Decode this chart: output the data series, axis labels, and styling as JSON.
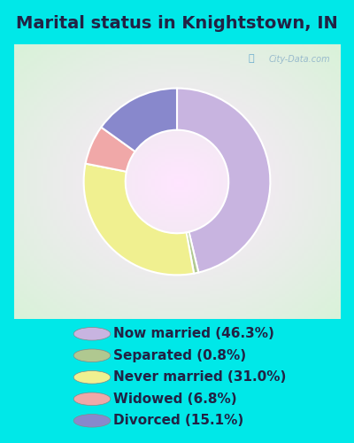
{
  "title": "Marital status in Knightstown, IN",
  "slices": [
    46.3,
    0.8,
    31.0,
    6.8,
    15.1
  ],
  "colors": [
    "#c8b4e0",
    "#b0c890",
    "#f0f090",
    "#f0a8a8",
    "#8888cc"
  ],
  "labels": [
    "Now married (46.3%)",
    "Separated (0.8%)",
    "Never married (31.0%)",
    "Widowed (6.8%)",
    "Divorced (15.1%)"
  ],
  "bg_cyan": "#00e8e8",
  "title_color": "#222244",
  "title_fontsize": 14,
  "legend_fontsize": 11,
  "startangle": 90
}
